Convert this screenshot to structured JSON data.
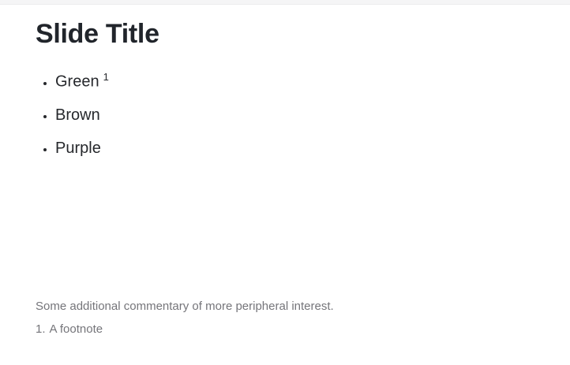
{
  "theme": {
    "background": "#ffffff",
    "top_strip_color": "#f5f5f6",
    "text_color": "#26282c",
    "muted_text_color": "#75757a",
    "accent_color": "#2a76dd"
  },
  "slide": {
    "title": "Slide Title",
    "bullets": [
      {
        "text": "Green",
        "footnote_ref": "1"
      },
      {
        "text": "Brown"
      },
      {
        "text": "Purple"
      }
    ],
    "aside": "Some additional commentary of more peripheral interest.",
    "footnotes": [
      {
        "marker": "1.",
        "text": "A footnote"
      }
    ]
  }
}
